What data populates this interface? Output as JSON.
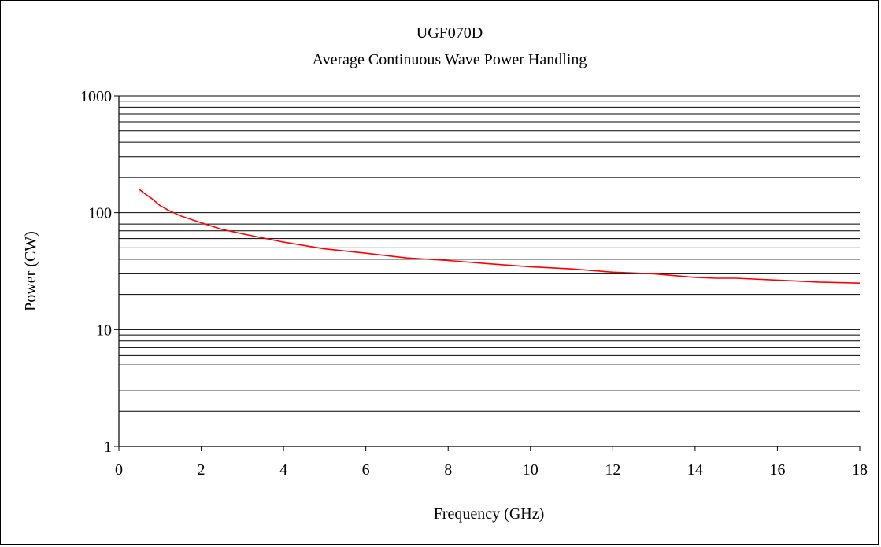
{
  "chart_data": {
    "type": "line",
    "title": "UGF070D",
    "subtitle": "Average Continuous Wave Power Handling",
    "xlabel": "Frequency (GHz)",
    "ylabel": "Power (CW)",
    "xlim": [
      0,
      18
    ],
    "ylim": [
      1,
      1000
    ],
    "y_scale": "log",
    "x_ticks": [
      0,
      2,
      4,
      6,
      8,
      10,
      12,
      14,
      16,
      18
    ],
    "y_ticks": [
      1,
      10,
      100,
      1000
    ],
    "grid": "horizontal minor and major",
    "legend": "none",
    "series": [
      {
        "color": "#ff0000",
        "x": [
          0.5,
          0.6,
          0.8,
          1.0,
          1.2,
          1.5,
          2.0,
          2.5,
          3.0,
          4.0,
          5.0,
          6.0,
          7.0,
          8.0,
          9.0,
          10.0,
          11.0,
          12.0,
          13.0,
          14.0,
          14.5,
          15.0,
          16.0,
          17.0,
          18.0
        ],
        "y": [
          158,
          148,
          132,
          115,
          105,
          94,
          82,
          72,
          66,
          56,
          49,
          45,
          41,
          39,
          36.5,
          34.5,
          33,
          31,
          30,
          28,
          27.5,
          27.5,
          26.5,
          25.5,
          25
        ]
      }
    ]
  }
}
